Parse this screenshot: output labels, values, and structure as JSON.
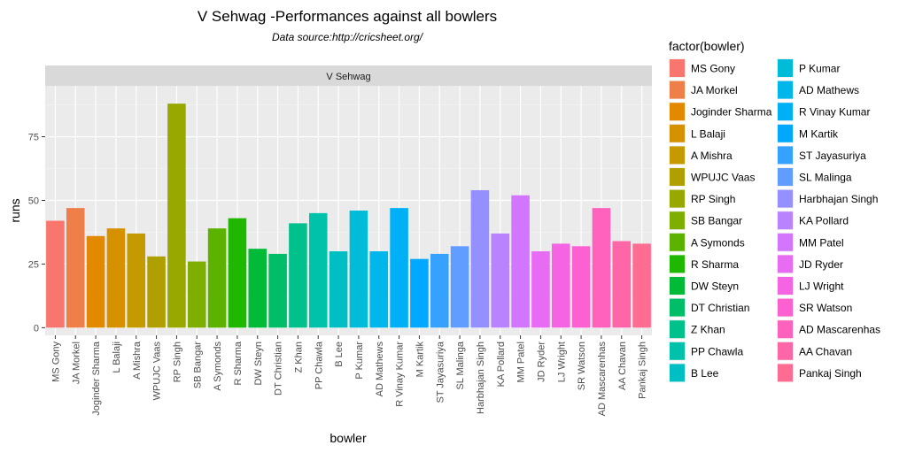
{
  "chart_data": {
    "type": "bar",
    "title": "V Sehwag -Performances against all bowlers",
    "subtitle": "Data source:http://cricsheet.org/",
    "facet_label": "V Sehwag",
    "xlabel": "bowler",
    "ylabel": "runs",
    "ylim": [
      -3,
      95
    ],
    "yticks": [
      0,
      25,
      50,
      75
    ],
    "grid": true,
    "legend_title": "factor(bowler)",
    "legend_position": "right",
    "categories": [
      "MS Gony",
      "JA Morkel",
      "Joginder Sharma",
      "L Balaji",
      "A Mishra",
      "WPUJC Vaas",
      "RP Singh",
      "SB Bangar",
      "A Symonds",
      "R Sharma",
      "DW Steyn",
      "DT Christian",
      "Z Khan",
      "PP Chawla",
      "B Lee",
      "P Kumar",
      "AD Mathews",
      "R Vinay Kumar",
      "M Kartik",
      "ST Jayasuriya",
      "SL Malinga",
      "Harbhajan Singh",
      "KA Pollard",
      "MM Patel",
      "JD Ryder",
      "LJ Wright",
      "SR Watson",
      "AD Mascarenhas",
      "AA Chavan",
      "Pankaj Singh"
    ],
    "values": [
      42,
      47,
      36,
      39,
      37,
      28,
      88,
      26,
      39,
      43,
      31,
      29,
      41,
      45,
      30,
      46,
      30,
      47,
      27,
      29,
      32,
      54,
      37,
      52,
      30,
      33,
      32,
      47,
      34,
      33
    ],
    "colors": [
      "#F8766D",
      "#EF7F49",
      "#E38900",
      "#D69100",
      "#C49A00",
      "#B09F00",
      "#99A800",
      "#7DAE00",
      "#5BB300",
      "#1FB700",
      "#00BA38",
      "#00BE67",
      "#00C08B",
      "#00C1A9",
      "#00BFC4",
      "#00BCD8",
      "#00B6EB",
      "#00B0F6",
      "#00A9FF",
      "#35A2FF",
      "#619CFF",
      "#9590FF",
      "#B983FF",
      "#D376FF",
      "#E76BF3",
      "#F564E3",
      "#FD61D1",
      "#FF62BC",
      "#FF66A8",
      "#FF6C91"
    ]
  }
}
